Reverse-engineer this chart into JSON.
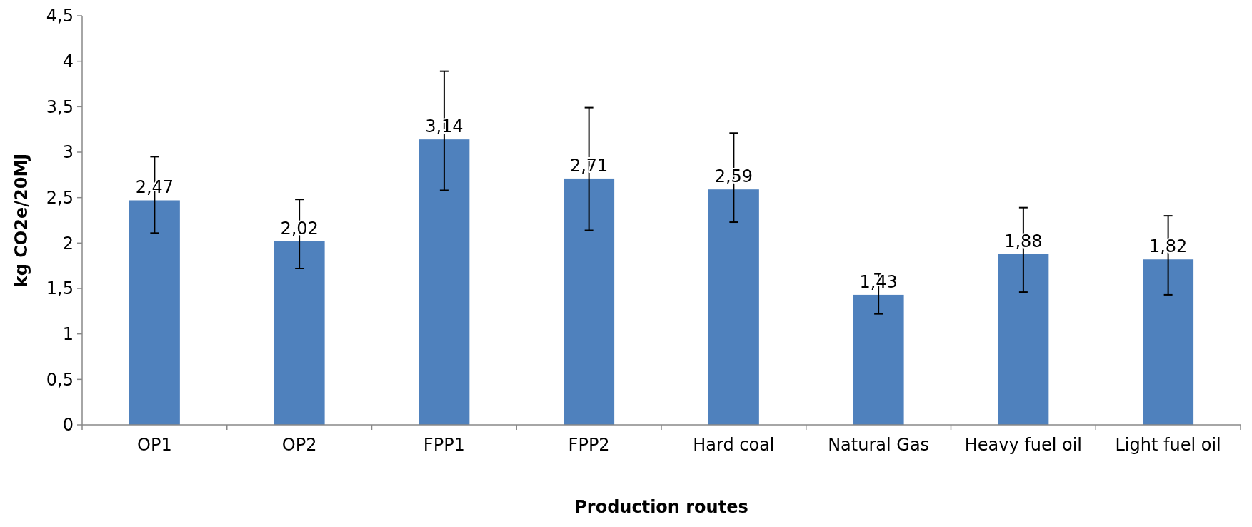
{
  "chart_data": {
    "type": "bar",
    "xlabel": "Production routes",
    "ylabel": "kg CO2e/20MJ",
    "categories": [
      "OP1",
      "OP2",
      "FPP1",
      "FPP2",
      "Hard coal",
      "Natural Gas",
      "Heavy fuel oil",
      "Light fuel oil"
    ],
    "values": [
      2.47,
      2.02,
      3.14,
      2.71,
      2.59,
      1.43,
      1.88,
      1.82
    ],
    "errors": [
      [
        2.11,
        2.95
      ],
      [
        1.72,
        2.48
      ],
      [
        2.58,
        3.89
      ],
      [
        2.14,
        3.49
      ],
      [
        2.23,
        3.21
      ],
      [
        1.22,
        1.66
      ],
      [
        1.46,
        2.39
      ],
      [
        1.43,
        2.3
      ]
    ],
    "color": "#4f81bd",
    "ylim": [
      0,
      4.5
    ],
    "yticks": [
      0,
      {
        "value": 0.5,
        "label": "0,5"
      },
      1,
      {
        "value": 1.5,
        "label": "1,5"
      },
      2,
      {
        "value": 2.5,
        "label": "2,5"
      },
      3,
      {
        "value": 3.5,
        "label": "3,5"
      },
      4,
      {
        "value": 4.5,
        "label": "4,5"
      }
    ],
    "value_labels": [
      "2,47",
      "2,02",
      "3,14",
      "2,71",
      "2,59",
      "1,43",
      "1,88",
      "1,82"
    ],
    "grid": false
  }
}
